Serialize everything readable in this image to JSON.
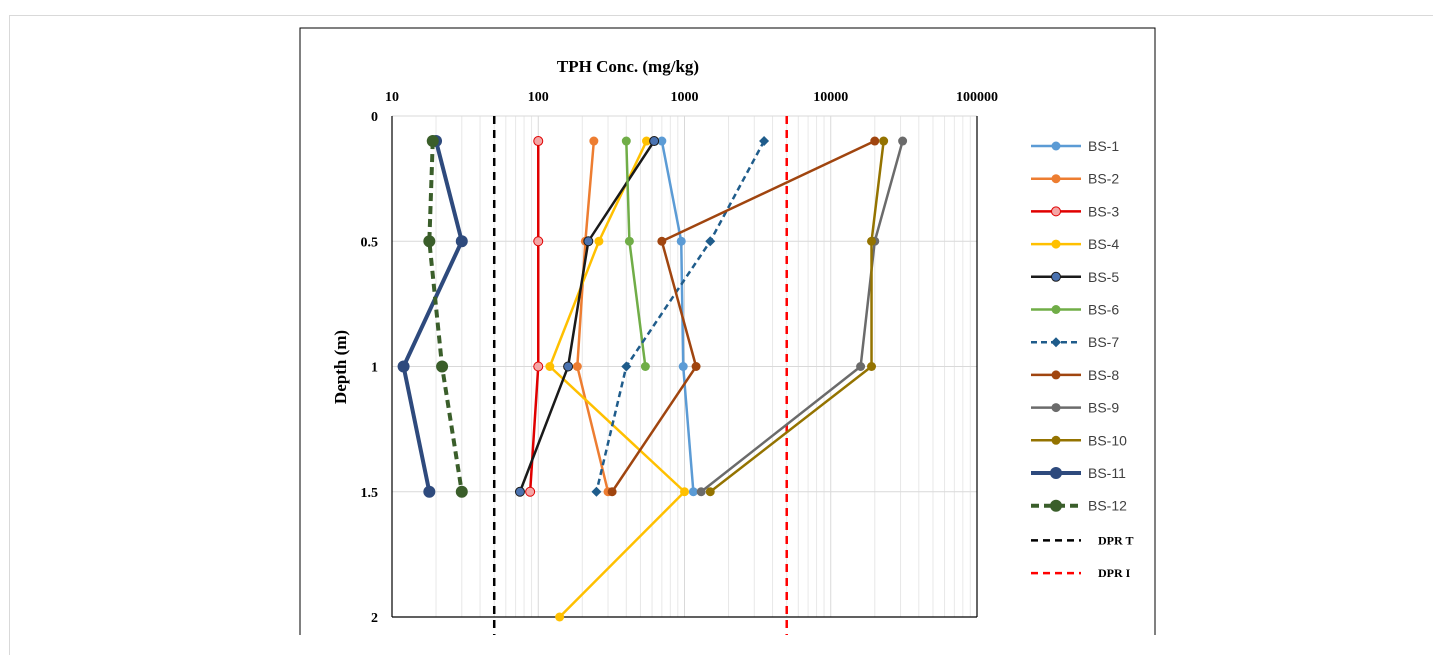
{
  "chart_data": {
    "type": "line",
    "title": "TPH Conc. (mg/kg)",
    "ylabel": "Depth (m)",
    "x_axis": {
      "scale": "log",
      "position": "top",
      "range": [
        10,
        100000
      ],
      "ticks": [
        "10",
        "100",
        "1000",
        "10000",
        "100000"
      ]
    },
    "y_axis": {
      "reversed": true,
      "range": [
        0,
        2
      ],
      "ticks": [
        "0",
        "0.5",
        "1",
        "1.5",
        "2"
      ]
    },
    "grid": true,
    "legend_position": "right",
    "series": [
      {
        "name": "BS-1",
        "color": "#5b9bd5",
        "style": "solid",
        "marker": "circle",
        "points": [
          [
            700,
            0.1
          ],
          [
            950,
            0.5
          ],
          [
            980,
            1.0
          ],
          [
            1150,
            1.5
          ]
        ]
      },
      {
        "name": "BS-2",
        "color": "#ed7d31",
        "style": "solid",
        "marker": "circle",
        "points": [
          [
            240,
            0.1
          ],
          [
            210,
            0.5
          ],
          [
            185,
            1.0
          ],
          [
            300,
            1.5
          ]
        ]
      },
      {
        "name": "BS-3",
        "color": "#e00000",
        "style": "solid",
        "marker": "circle-pink",
        "points": [
          [
            100,
            0.1
          ],
          [
            100,
            0.5
          ],
          [
            100,
            1.0
          ],
          [
            88,
            1.5
          ]
        ]
      },
      {
        "name": "BS-4",
        "color": "#ffc000",
        "style": "solid",
        "marker": "circle",
        "points": [
          [
            550,
            0.1
          ],
          [
            260,
            0.5
          ],
          [
            120,
            1.0
          ],
          [
            1000,
            1.5
          ],
          [
            140,
            2.0
          ]
        ]
      },
      {
        "name": "BS-5",
        "color": "#1a1a1a",
        "style": "solid",
        "marker": "circle-blue",
        "points": [
          [
            620,
            0.1
          ],
          [
            220,
            0.5
          ],
          [
            160,
            1.0
          ],
          [
            75,
            1.5
          ]
        ]
      },
      {
        "name": "BS-6",
        "color": "#70ad47",
        "style": "solid",
        "marker": "circle",
        "points": [
          [
            400,
            0.1
          ],
          [
            420,
            0.5
          ],
          [
            540,
            1.0
          ]
        ]
      },
      {
        "name": "BS-7",
        "color": "#1f5c8b",
        "style": "dashed",
        "marker": "diamond",
        "points": [
          [
            3500,
            0.1
          ],
          [
            1500,
            0.5
          ],
          [
            400,
            1.0
          ],
          [
            250,
            1.5
          ]
        ]
      },
      {
        "name": "BS-8",
        "color": "#a0450f",
        "style": "solid",
        "marker": "circle",
        "points": [
          [
            20000,
            0.1
          ],
          [
            700,
            0.5
          ],
          [
            1200,
            1.0
          ],
          [
            320,
            1.5
          ]
        ]
      },
      {
        "name": "BS-9",
        "color": "#6b6b6b",
        "style": "solid",
        "marker": "circle",
        "points": [
          [
            31000,
            0.1
          ],
          [
            20000,
            0.5
          ],
          [
            16000,
            1.0
          ],
          [
            1300,
            1.5
          ]
        ]
      },
      {
        "name": "BS-10",
        "color": "#947300",
        "style": "solid",
        "marker": "circle",
        "points": [
          [
            23000,
            0.1
          ],
          [
            19000,
            0.5
          ],
          [
            19000,
            1.0
          ],
          [
            1500,
            1.5
          ]
        ]
      },
      {
        "name": "BS-11",
        "color": "#2e4a7d",
        "style": "solid-thick",
        "marker": "circle-large",
        "points": [
          [
            20,
            0.1
          ],
          [
            30,
            0.5
          ],
          [
            12,
            1.0
          ],
          [
            18,
            1.5
          ]
        ]
      },
      {
        "name": "BS-12",
        "color": "#3a5e2a",
        "style": "dashed-thick",
        "marker": "circle-large",
        "points": [
          [
            19,
            0.1
          ],
          [
            18,
            0.5
          ],
          [
            22,
            1.0
          ],
          [
            30,
            1.5
          ]
        ]
      }
    ],
    "reference_lines": [
      {
        "name": "DPR T",
        "value": 50,
        "color": "#000000",
        "style": "dashed"
      },
      {
        "name": "DPR I",
        "value": 5000,
        "color": "#ff0000",
        "style": "dashed"
      }
    ]
  }
}
